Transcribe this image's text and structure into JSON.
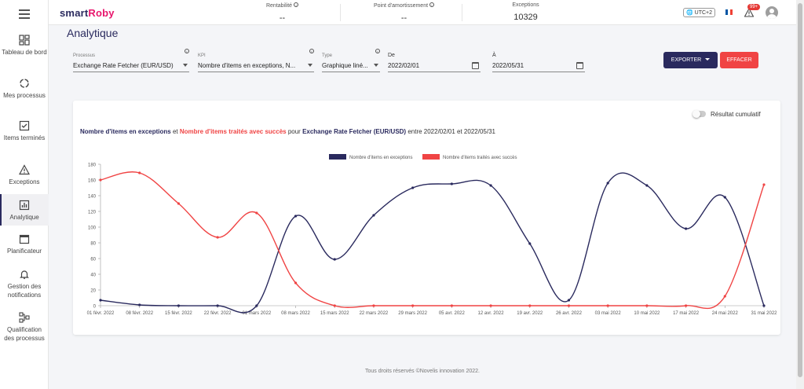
{
  "sidebar": {
    "items": [
      {
        "label": "Tableau de bord",
        "icon": "dashboard-icon"
      },
      {
        "label": "Mes processus",
        "icon": "process-icon"
      },
      {
        "label": "Items terminés",
        "icon": "checkbox-icon"
      },
      {
        "label": "Exceptions",
        "icon": "warning-icon"
      },
      {
        "label": "Analytique",
        "icon": "chart-icon",
        "active": true
      },
      {
        "label": "Planificateur",
        "icon": "calendar-icon"
      },
      {
        "label": "Gestion des notifications",
        "icon": "bell-icon"
      },
      {
        "label": "Qualification des processus",
        "icon": "flow-icon"
      }
    ]
  },
  "header": {
    "logo_main": "smart",
    "logo_accent": "Roby",
    "kpis": [
      {
        "title": "Rentabilité",
        "value": "--"
      },
      {
        "title": "Point d'amortissement",
        "value": "--"
      },
      {
        "title": "Exceptions",
        "value": "10329"
      }
    ],
    "timezone": "UTC+2",
    "notification_count": "99+",
    "flag_colors": [
      "#0055a4",
      "#ffffff",
      "#ef4135"
    ]
  },
  "page": {
    "title": "Analytique"
  },
  "filters": {
    "process": {
      "label": "Processus",
      "value": "Exchange Rate Fetcher (EUR/USD)"
    },
    "kpi": {
      "label": "KPI",
      "value": "Nombre d'items en exceptions, N..."
    },
    "type": {
      "label": "Type",
      "value": "Graphique liné..."
    },
    "from": {
      "label": "De",
      "value": "2022/02/01"
    },
    "to": {
      "label": "À",
      "value": "2022/05/31"
    }
  },
  "actions": {
    "export_label": "EXPORTER",
    "clear_label": "EFFACER"
  },
  "card": {
    "cumulative_label": "Résultat cumulatif",
    "title_part1": "Nombre d'items en exceptions",
    "title_and": " et ",
    "title_part2": "Nombre d'items traités avec succès",
    "title_for": " pour ",
    "title_process": "Exchange Rate Fetcher (EUR/USD)",
    "title_range": " entre 2022/02/01 et 2022/05/31"
  },
  "colors": {
    "primary": "#2a2a5e",
    "danger": "#f04444"
  },
  "chart_data": {
    "type": "line",
    "x": [
      "01 févr. 2022",
      "08 févr. 2022",
      "15 févr. 2022",
      "22 févr. 2022",
      "01 mars 2022",
      "08 mars 2022",
      "15 mars 2022",
      "22 mars 2022",
      "29 mars 2022",
      "05 avr. 2022",
      "12 avr. 2022",
      "19 avr. 2022",
      "26 avr. 2022",
      "03 mai 2022",
      "10 mai 2022",
      "17 mai 2022",
      "24 mai 2022",
      "31 mai 2022"
    ],
    "series": [
      {
        "name": "Nombre d'items en exceptions",
        "color": "#2a2a5e",
        "values": [
          7,
          1,
          0,
          0,
          0,
          114,
          59,
          115,
          150,
          155,
          153,
          79,
          7,
          156,
          153,
          98,
          138,
          0
        ]
      },
      {
        "name": "Nombre d'items traités avec succès",
        "color": "#f04444",
        "values": [
          160,
          169,
          130,
          87,
          118,
          29,
          0,
          0,
          0,
          0,
          0,
          0,
          0,
          0,
          0,
          0,
          12,
          154
        ]
      }
    ],
    "ylim": [
      0,
      180
    ],
    "yticks": [
      0,
      20,
      40,
      60,
      80,
      100,
      120,
      140,
      160,
      180
    ],
    "grid": false,
    "legend_position": "top-center"
  },
  "footer": {
    "text": "Tous droits réservés ©Novelis innovation 2022."
  }
}
